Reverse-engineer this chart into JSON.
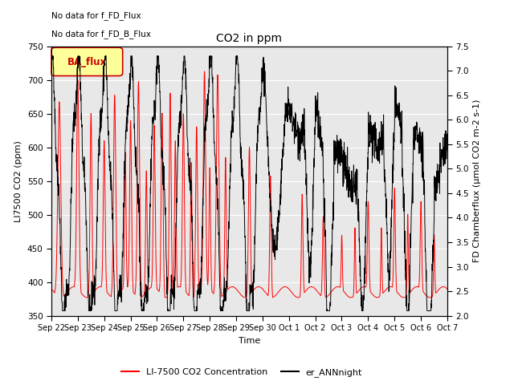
{
  "title": "CO2 in ppm",
  "xlabel": "Time",
  "ylabel_left": "LI7500 CO2 (ppm)",
  "ylabel_right": "FD Chamberflux (μmol CO2 m-2 s-1)",
  "ylim_left": [
    350,
    750
  ],
  "ylim_right": [
    2.0,
    7.5
  ],
  "yticks_left": [
    350,
    400,
    450,
    500,
    550,
    600,
    650,
    700,
    750
  ],
  "yticks_right": [
    2.0,
    2.5,
    3.0,
    3.5,
    4.0,
    4.5,
    5.0,
    5.5,
    6.0,
    6.5,
    7.0,
    7.5
  ],
  "annotation_text1": "No data for f_FD_Flux",
  "annotation_text2": "No data for f_FD_B_Flux",
  "legend_label_red": "LI-7500 CO2 Concentration",
  "legend_label_black": "er_ANNnight",
  "legend_patch_label": "BA_flux",
  "background_color": "#e8e8e8",
  "red_color": "#ff0000",
  "black_color": "#000000",
  "patch_facecolor": "#ffff99",
  "patch_edgecolor": "#cc0000",
  "x_tick_labels": [
    "Sep 22",
    "Sep 23",
    "Sep 24",
    "Sep 25",
    "Sep 26",
    "Sep 27",
    "Sep 28",
    "Sep 29",
    "Sep 30",
    "Oct 1",
    "Oct 2",
    "Oct 3",
    "Oct 4",
    "Oct 5",
    "Oct 6",
    "Oct 7"
  ]
}
